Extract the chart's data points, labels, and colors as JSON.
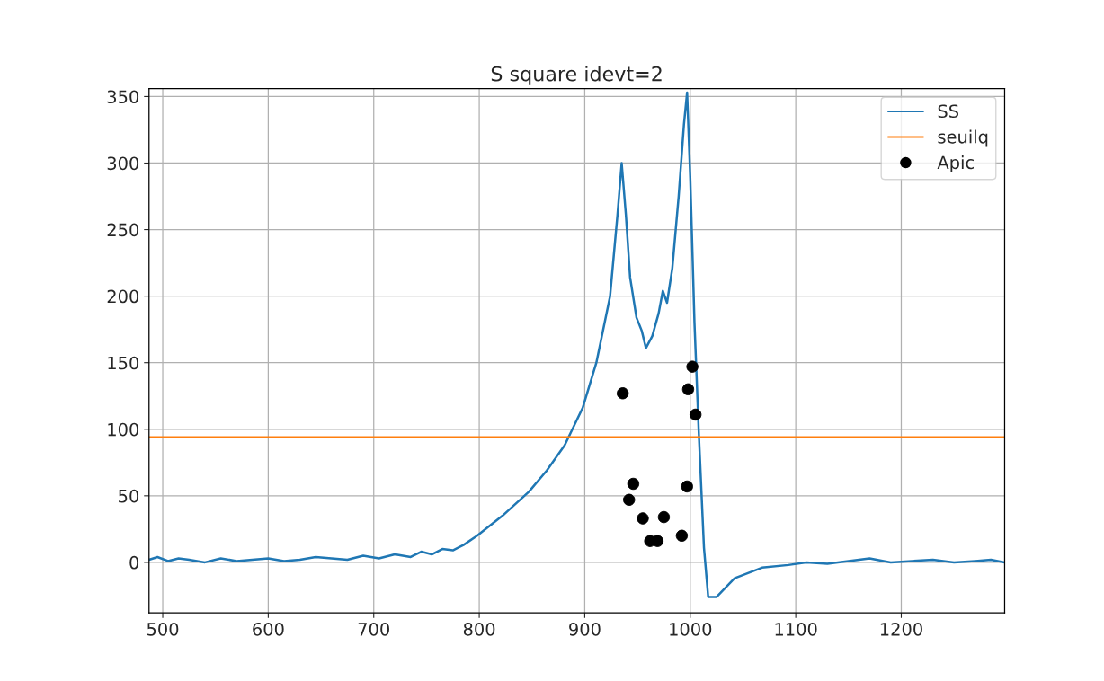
{
  "chart_data": {
    "type": "line",
    "title": "S square idevt=2",
    "series": [
      {
        "name": "SS",
        "color": "#1f77b4",
        "x": [
          487,
          495,
          505,
          515,
          525,
          540,
          555,
          570,
          585,
          600,
          615,
          630,
          645,
          660,
          675,
          690,
          705,
          720,
          735,
          745,
          755,
          765,
          775,
          785,
          798,
          822,
          847,
          864,
          881,
          898,
          911,
          924,
          931,
          935,
          939,
          943,
          949,
          954,
          958,
          964,
          970,
          974,
          978,
          983,
          989,
          994,
          997,
          1000,
          1004,
          1008,
          1013,
          1017,
          1025,
          1042,
          1068,
          1093,
          1110,
          1130,
          1150,
          1170,
          1190,
          1210,
          1230,
          1250,
          1270,
          1285,
          1298
        ],
        "values": [
          2,
          4,
          1,
          3,
          2,
          0,
          3,
          1,
          2,
          3,
          1,
          2,
          4,
          3,
          2,
          5,
          3,
          6,
          4,
          8,
          6,
          10,
          9,
          13,
          20,
          35,
          53,
          69,
          88,
          116,
          150,
          200,
          261,
          300,
          261,
          214,
          184,
          174,
          161,
          170,
          187,
          204,
          195,
          221,
          275,
          329,
          353,
          289,
          180,
          99,
          11,
          -26,
          -26,
          -12,
          -4,
          -2,
          0,
          -1,
          1,
          3,
          0,
          1,
          2,
          0,
          1,
          2,
          0
        ]
      },
      {
        "name": "Apic",
        "color": "#000000",
        "type": "scatter",
        "marker": "circle",
        "x": [
          936,
          946,
          942,
          955,
          962,
          969,
          975,
          992,
          997,
          998,
          1002,
          1005
        ],
        "values": [
          127,
          59,
          47,
          33,
          16,
          16,
          34,
          20,
          57,
          130,
          147,
          111
        ]
      }
    ],
    "ref_lines": [
      {
        "axis": "y",
        "value": 94,
        "label": "seuilq",
        "color": "#ff7f0e"
      }
    ],
    "xlim": [
      487,
      1298
    ],
    "ylim": [
      -38,
      356
    ],
    "xticks": [
      500,
      600,
      700,
      800,
      900,
      1000,
      1100,
      1200
    ],
    "yticks": [
      0,
      50,
      100,
      150,
      200,
      250,
      300,
      350
    ],
    "grid": true,
    "legend": "top right"
  }
}
